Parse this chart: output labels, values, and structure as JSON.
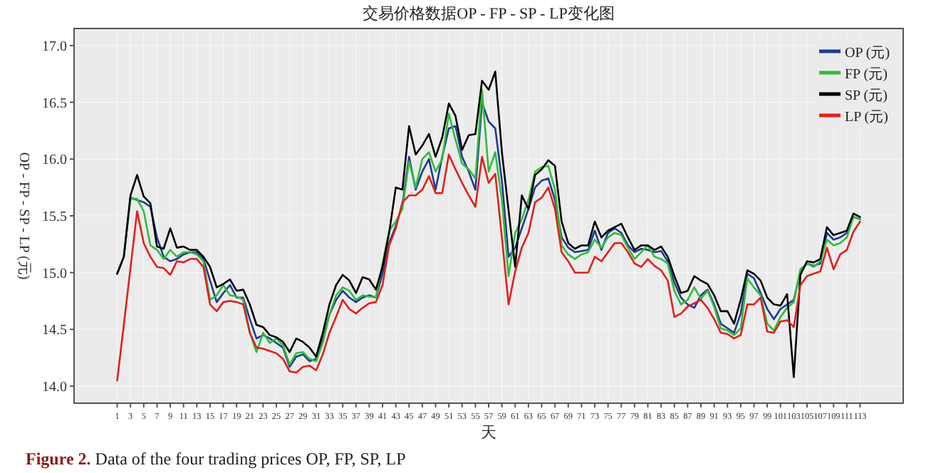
{
  "chart_data": {
    "type": "line",
    "title": "交易价格数据OP - FP - SP - LP变化图",
    "xlabel": "天",
    "ylabel": "OP - FP - SP - LP (元)",
    "legend": "top right",
    "grid": true,
    "marker": "none",
    "line_style": "solid",
    "annotations": [
      "Figure 2. Data of the four trading prices OP, FP, SP, LP"
    ],
    "x": [
      1,
      2,
      3,
      4,
      5,
      6,
      7,
      8,
      9,
      10,
      11,
      12,
      13,
      14,
      15,
      16,
      17,
      18,
      19,
      20,
      21,
      22,
      23,
      24,
      25,
      26,
      27,
      28,
      29,
      30,
      31,
      32,
      33,
      34,
      35,
      36,
      37,
      38,
      39,
      40,
      41,
      42,
      43,
      44,
      45,
      46,
      47,
      48,
      49,
      50,
      51,
      52,
      53,
      54,
      55,
      56,
      57,
      58,
      59,
      60,
      61,
      62,
      63,
      64,
      65,
      66,
      67,
      68,
      69,
      70,
      71,
      72,
      73,
      74,
      75,
      76,
      77,
      78,
      79,
      80,
      81,
      82,
      83,
      84,
      85,
      86,
      87,
      88,
      89,
      90,
      91,
      92,
      93,
      94,
      95,
      96,
      97,
      98,
      99,
      100,
      101,
      102,
      103,
      104,
      105,
      106,
      107,
      108,
      109,
      110,
      111,
      112,
      113
    ],
    "xlim": [
      -5.5,
      119.5
    ],
    "xticks": [
      1,
      3,
      5,
      7,
      9,
      11,
      13,
      15,
      17,
      19,
      21,
      23,
      25,
      27,
      29,
      31,
      33,
      35,
      37,
      39,
      41,
      43,
      45,
      47,
      49,
      51,
      53,
      55,
      57,
      59,
      61,
      63,
      65,
      67,
      69,
      71,
      73,
      75,
      77,
      79,
      81,
      83,
      85,
      87,
      89,
      91,
      93,
      95,
      97,
      99,
      101,
      103,
      105,
      107,
      109,
      111,
      113
    ],
    "ylim": [
      13.85,
      17.15
    ],
    "yticks": [
      {
        "value": 14,
        "label": "14.0"
      },
      {
        "value": 14.5,
        "label": "14.5"
      },
      {
        "value": 15,
        "label": "15.0"
      },
      {
        "value": 15.5,
        "label": "15.5"
      },
      {
        "value": 16,
        "label": "16.0"
      },
      {
        "value": 16.5,
        "label": "16.5"
      },
      {
        "value": 17,
        "label": "17.0"
      }
    ],
    "series": [
      {
        "name": "OP (元)",
        "color": "#1f3a93",
        "values": [
          14.99,
          15.14,
          15.66,
          15.64,
          15.62,
          15.58,
          15.31,
          15.14,
          15.1,
          15.12,
          15.16,
          15.18,
          15.18,
          15.12,
          14.93,
          14.74,
          14.82,
          14.89,
          14.78,
          14.78,
          14.59,
          14.42,
          14.45,
          14.42,
          14.38,
          14.34,
          14.17,
          14.26,
          14.28,
          14.22,
          14.24,
          14.42,
          14.63,
          14.76,
          14.84,
          14.78,
          14.74,
          14.78,
          14.8,
          14.78,
          14.99,
          15.26,
          15.41,
          15.6,
          16.02,
          15.73,
          15.89,
          16.0,
          15.73,
          16.02,
          16.27,
          16.29,
          16.02,
          15.89,
          15.73,
          16.5,
          16.33,
          16.27,
          15.81,
          15.14,
          15.22,
          15.39,
          15.56,
          15.75,
          15.81,
          15.83,
          15.64,
          15.31,
          15.22,
          15.18,
          15.19,
          15.2,
          15.37,
          15.2,
          15.35,
          15.39,
          15.35,
          15.24,
          15.18,
          15.21,
          15.2,
          15.18,
          15.19,
          15.1,
          14.91,
          14.78,
          14.72,
          14.69,
          14.8,
          14.85,
          14.72,
          14.55,
          14.51,
          14.47,
          14.64,
          14.99,
          14.95,
          14.82,
          14.68,
          14.59,
          14.68,
          14.72,
          14.76,
          15.01,
          15.08,
          15.06,
          15.08,
          15.35,
          15.29,
          15.31,
          15.35,
          15.49,
          15.47
        ]
      },
      {
        "name": "FP (元)",
        "color": "#2ebd3a",
        "values": [
          14.99,
          15.14,
          15.65,
          15.65,
          15.54,
          15.24,
          15.2,
          15.12,
          15.2,
          15.14,
          15.18,
          15.18,
          15.16,
          15.1,
          14.76,
          14.8,
          14.89,
          14.8,
          14.79,
          14.76,
          14.47,
          14.3,
          14.47,
          14.38,
          14.42,
          14.36,
          14.19,
          14.29,
          14.3,
          14.24,
          14.22,
          14.38,
          14.63,
          14.8,
          14.87,
          14.84,
          14.76,
          14.8,
          14.79,
          14.78,
          15.08,
          15.37,
          15.45,
          15.56,
          15.98,
          15.75,
          16.0,
          16.06,
          15.89,
          16.0,
          16.4,
          16.17,
          15.96,
          15.91,
          15.83,
          16.61,
          15.89,
          16.06,
          15.64,
          14.97,
          15.35,
          15.47,
          15.64,
          15.89,
          15.93,
          15.94,
          15.73,
          15.24,
          15.16,
          15.12,
          15.16,
          15.18,
          15.29,
          15.22,
          15.31,
          15.35,
          15.33,
          15.22,
          15.12,
          15.18,
          15.24,
          15.14,
          15.12,
          15.08,
          14.84,
          14.72,
          14.76,
          14.87,
          14.77,
          14.84,
          14.7,
          14.51,
          14.49,
          14.45,
          14.51,
          14.95,
          14.87,
          14.8,
          14.55,
          14.49,
          14.61,
          14.69,
          14.74,
          15.03,
          15.08,
          15.05,
          15.1,
          15.29,
          15.24,
          15.26,
          15.31,
          15.49,
          15.47
        ]
      },
      {
        "name": "SP (元)",
        "color": "#000000",
        "values": [
          14.99,
          15.14,
          15.68,
          15.86,
          15.67,
          15.61,
          15.23,
          15.21,
          15.39,
          15.22,
          15.23,
          15.2,
          15.2,
          15.14,
          15.05,
          14.87,
          14.9,
          14.94,
          14.84,
          14.85,
          14.72,
          14.54,
          14.52,
          14.45,
          14.43,
          14.39,
          14.3,
          14.42,
          14.39,
          14.34,
          14.26,
          14.47,
          14.72,
          14.89,
          14.98,
          14.93,
          14.82,
          14.96,
          14.94,
          14.85,
          15.05,
          15.35,
          15.75,
          15.73,
          16.29,
          16.04,
          16.12,
          16.22,
          16.02,
          16.19,
          16.49,
          16.38,
          16.08,
          16.21,
          16.22,
          16.69,
          16.61,
          16.77,
          16.06,
          15.55,
          15.05,
          15.68,
          15.56,
          15.86,
          15.91,
          15.99,
          15.94,
          15.45,
          15.26,
          15.21,
          15.24,
          15.24,
          15.45,
          15.31,
          15.37,
          15.4,
          15.43,
          15.31,
          15.2,
          15.24,
          15.24,
          15.2,
          15.23,
          15.14,
          14.97,
          14.82,
          14.84,
          14.97,
          14.93,
          14.9,
          14.8,
          14.66,
          14.66,
          14.55,
          14.76,
          15.02,
          14.99,
          14.93,
          14.78,
          14.72,
          14.71,
          14.81,
          14.08,
          14.98,
          15.1,
          15.09,
          15.12,
          15.4,
          15.33,
          15.35,
          15.37,
          15.52,
          15.49
        ]
      },
      {
        "name": "LP (元)",
        "color": "#e0201c",
        "values": [
          14.05,
          14.54,
          15.04,
          15.54,
          15.26,
          15.14,
          15.05,
          15.04,
          14.98,
          15.1,
          15.09,
          15.12,
          15.12,
          15.05,
          14.72,
          14.66,
          14.74,
          14.75,
          14.74,
          14.72,
          14.47,
          14.34,
          14.33,
          14.31,
          14.29,
          14.24,
          14.13,
          14.12,
          14.17,
          14.18,
          14.14,
          14.28,
          14.47,
          14.61,
          14.76,
          14.68,
          14.64,
          14.69,
          14.73,
          14.74,
          14.89,
          15.24,
          15.39,
          15.62,
          15.68,
          15.68,
          15.73,
          15.85,
          15.7,
          15.7,
          16.04,
          15.91,
          15.79,
          15.68,
          15.58,
          16.02,
          15.79,
          15.87,
          15.31,
          14.72,
          15.01,
          15.22,
          15.35,
          15.62,
          15.66,
          15.75,
          15.56,
          15.18,
          15.1,
          15.0,
          15.0,
          15.0,
          15.14,
          15.1,
          15.18,
          15.26,
          15.26,
          15.18,
          15.08,
          15.05,
          15.12,
          15.06,
          15.02,
          14.93,
          14.61,
          14.64,
          14.7,
          14.73,
          14.76,
          14.69,
          14.59,
          14.47,
          14.46,
          14.42,
          14.45,
          14.72,
          14.72,
          14.78,
          14.48,
          14.47,
          14.57,
          14.58,
          14.52,
          14.89,
          14.97,
          14.99,
          15.01,
          15.22,
          15.03,
          15.16,
          15.2,
          15.36,
          15.45
        ]
      }
    ]
  }
}
